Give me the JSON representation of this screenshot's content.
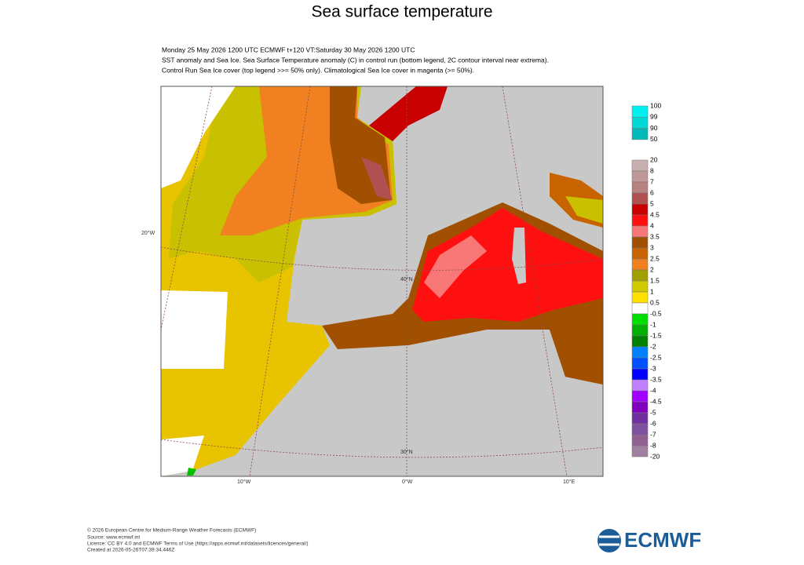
{
  "title": "Sea surface temperature",
  "header": {
    "lines": [
      "Monday 25 May 2026 1200 UTC  ECMWF  t+120  VT:Saturday 30 May 2026 1200 UTC",
      "SST anomaly and Sea Ice. Sea Surface Temperature anomaly (C) in control run (bottom legend, 2C contour interval near extrema).",
      "Control Run Sea Ice cover (top legend >>= 50% only). Climatological Sea Ice cover in magenta (>= 50%)."
    ]
  },
  "map": {
    "labels": [
      "20°W",
      "40°N",
      "30°N",
      "10°W",
      "0°W",
      "10°E"
    ]
  },
  "ice_legend": {
    "labels": [
      "100",
      "99",
      "90",
      "50"
    ],
    "colors": [
      "#00f0f0",
      "#00d8d8",
      "#00b8b8"
    ]
  },
  "sst_legend": {
    "labels": [
      "20",
      "8",
      "7",
      "6",
      "5",
      "4.5",
      "4",
      "3.5",
      "3",
      "2.5",
      "2",
      "1.5",
      "1",
      "0.5",
      "-0.5",
      "-1",
      "-1.5",
      "-2",
      "-2.5",
      "-3",
      "-3.5",
      "-4",
      "-4.5",
      "-5",
      "-6",
      "-7",
      "-8",
      "-20"
    ],
    "colors": [
      "#c8b0b0",
      "#c09898",
      "#b88080",
      "#b05050",
      "#c80000",
      "#ff1010",
      "#f87878",
      "#a05000",
      "#c86400",
      "#f08020",
      "#a0a000",
      "#d0c800",
      "#ffe000",
      "#ffffff",
      "#00e000",
      "#00b000",
      "#008000",
      "#0080ff",
      "#0050ff",
      "#0000ff",
      "#c080ff",
      "#a000ff",
      "#8000c0",
      "#7030a0",
      "#8050a0",
      "#906090",
      "#a080a0"
    ]
  },
  "footer": {
    "lines": [
      "© 2026 European Centre for Medium-Range Weather Forecasts (ECMWF)",
      "Source: www.ecmwf.int",
      "Licence: CC BY 4.0 and ECMWF Terms of Use (https://apps.ecmwf.int/datasets/licences/general/)",
      "Created at 2026-05-26T07:39:34.446Z"
    ]
  },
  "logo": "ECMWF"
}
